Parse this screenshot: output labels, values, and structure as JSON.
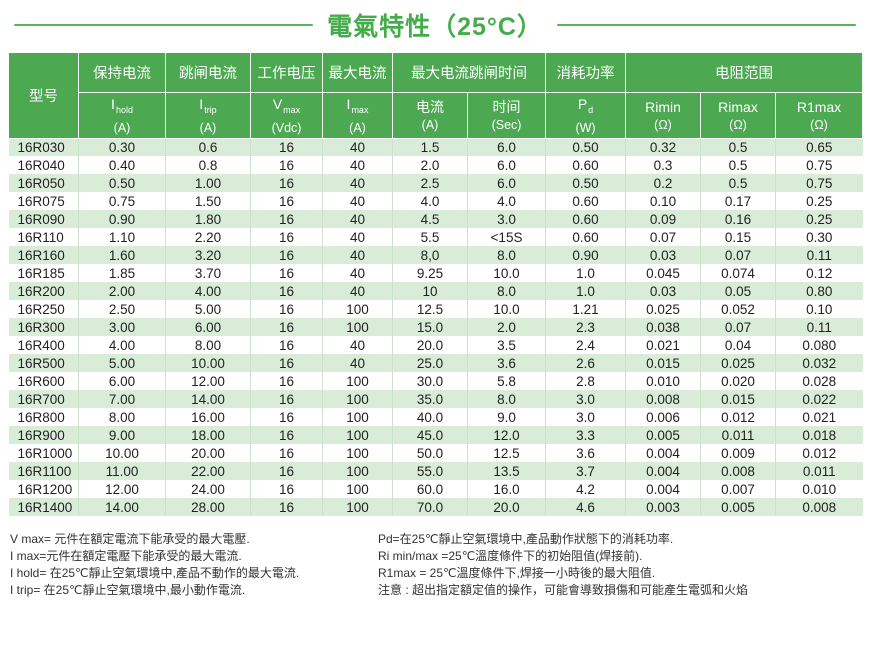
{
  "page": {
    "title": "電氣特性（25°C）"
  },
  "colors": {
    "header_green": "#4da852",
    "stripe_green": "#d8ecd8",
    "title_green": "#44ad4a",
    "grid_line_green": "#c9e2c9",
    "text_dark": "#222222"
  },
  "table": {
    "header_groups": {
      "model": "型号",
      "hold_current": "保持电流",
      "trip_current": "跳闸电流",
      "working_voltage": "工作电压",
      "max_current": "最大电流",
      "max_current_trip_time": "最大电流跳闸时间",
      "power_dissipation": "消耗功率",
      "resistance_range": "电阻范围"
    },
    "subheaders": [
      {
        "base": "I",
        "sub": "hold",
        "unit": "(A)"
      },
      {
        "base": "I",
        "sub": "trip",
        "unit": "(A)"
      },
      {
        "base": "V",
        "sub": "max",
        "unit": "(Vdc)"
      },
      {
        "base": "I",
        "sub": "max",
        "unit": "(A)"
      },
      {
        "base": "电流",
        "sub": "",
        "unit": "(A)"
      },
      {
        "base": "时间",
        "sub": "",
        "unit": "(Sec)"
      },
      {
        "base": "P",
        "sub": "d",
        "unit": "(W)"
      },
      {
        "base": "Rimin",
        "sub": "",
        "unit": "(Ω)"
      },
      {
        "base": "Rimax",
        "sub": "",
        "unit": "(Ω)"
      },
      {
        "base": "R1max",
        "sub": "",
        "unit": "(Ω)"
      }
    ],
    "rows": [
      [
        "16R030",
        "0.30",
        "0.6",
        "16",
        "40",
        "1.5",
        "6.0",
        "0.50",
        "0.32",
        "0.5",
        "0.65"
      ],
      [
        "16R040",
        "0.40",
        "0.8",
        "16",
        "40",
        "2.0",
        "6.0",
        "0.60",
        "0.3",
        "0.5",
        "0.75"
      ],
      [
        "16R050",
        "0.50",
        "1.00",
        "16",
        "40",
        "2.5",
        "6.0",
        "0.50",
        "0.2",
        "0.5",
        "0.75"
      ],
      [
        "16R075",
        "0.75",
        "1.50",
        "16",
        "40",
        "4.0",
        "4.0",
        "0.60",
        "0.10",
        "0.17",
        "0.25"
      ],
      [
        "16R090",
        "0.90",
        "1.80",
        "16",
        "40",
        "4.5",
        "3.0",
        "0.60",
        "0.09",
        "0.16",
        "0.25"
      ],
      [
        "16R110",
        "1.10",
        "2.20",
        "16",
        "40",
        "5.5",
        "<15S",
        "0.60",
        "0.07",
        "0.15",
        "0.30"
      ],
      [
        "16R160",
        "1.60",
        "3.20",
        "16",
        "40",
        "8,0",
        "8.0",
        "0.90",
        "0.03",
        "0.07",
        "0.11"
      ],
      [
        "16R185",
        "1.85",
        "3.70",
        "16",
        "40",
        "9.25",
        "10.0",
        "1.0",
        "0.045",
        "0.074",
        "0.12"
      ],
      [
        "16R200",
        "2.00",
        "4.00",
        "16",
        "40",
        "10",
        "8.0",
        "1.0",
        "0.03",
        "0.05",
        "0.80"
      ],
      [
        "16R250",
        "2.50",
        "5.00",
        "16",
        "100",
        "12.5",
        "10.0",
        "1.21",
        "0.025",
        "0.052",
        "0.10"
      ],
      [
        "16R300",
        "3.00",
        "6.00",
        "16",
        "100",
        "15.0",
        "2.0",
        "2.3",
        "0.038",
        "0.07",
        "0.11"
      ],
      [
        "16R400",
        "4.00",
        "8.00",
        "16",
        "40",
        "20.0",
        "3.5",
        "2.4",
        "0.021",
        "0.04",
        "0.080"
      ],
      [
        "16R500",
        "5.00",
        "10.00",
        "16",
        "40",
        "25.0",
        "3.6",
        "2.6",
        "0.015",
        "0.025",
        "0.032"
      ],
      [
        "16R600",
        "6.00",
        "12.00",
        "16",
        "100",
        "30.0",
        "5.8",
        "2.8",
        "0.010",
        "0.020",
        "0.028"
      ],
      [
        "16R700",
        "7.00",
        "14.00",
        "16",
        "100",
        "35.0",
        "8.0",
        "3.0",
        "0.008",
        "0.015",
        "0.022"
      ],
      [
        "16R800",
        "8.00",
        "16.00",
        "16",
        "100",
        "40.0",
        "9.0",
        "3.0",
        "0.006",
        "0.012",
        "0.021"
      ],
      [
        "16R900",
        "9.00",
        "18.00",
        "16",
        "100",
        "45.0",
        "12.0",
        "3.3",
        "0.005",
        "0.011",
        "0.018"
      ],
      [
        "16R1000",
        "10.00",
        "20.00",
        "16",
        "100",
        "50.0",
        "12.5",
        "3.6",
        "0.004",
        "0.009",
        "0.012"
      ],
      [
        "16R1100",
        "11.00",
        "22.00",
        "16",
        "100",
        "55.0",
        "13.5",
        "3.7",
        "0.004",
        "0.008",
        "0.011"
      ],
      [
        "16R1200",
        "12.00",
        "24.00",
        "16",
        "100",
        "60.0",
        "16.0",
        "4.2",
        "0.004",
        "0.007",
        "0.010"
      ],
      [
        "16R1400",
        "14.00",
        "28.00",
        "16",
        "100",
        "70.0",
        "20.0",
        "4.6",
        "0.003",
        "0.005",
        "0.008"
      ]
    ]
  },
  "notes": {
    "left": [
      "V max= 元件在額定電流下能承受的最大電壓.",
      "I max=元件在額定電壓下能承受的最大電流.",
      "I hold= 在25℃靜止空氣環境中,產品不動作的最大電流.",
      "I trip= 在25℃靜止空氣環境中,最小動作電流."
    ],
    "right": [
      "Pd=在25℃靜止空氣環境中,產品動作狀態下的消耗功率.",
      "Ri min/max  =25℃溫度條件下的初始阻值(焊接前).",
      "R1max  = 25℃溫度條件下,焊接一小時後的最大阻值.",
      "注意 : 超出指定額定值的操作，可能會導致損傷和可能產生電弧和火焰"
    ]
  }
}
